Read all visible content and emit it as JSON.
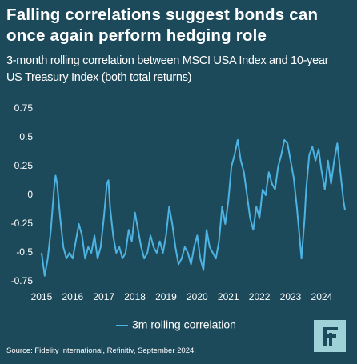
{
  "chart_data": {
    "type": "line",
    "title": "Falling correlations suggest bonds can once again perform hedging role",
    "subtitle": "3-month rolling correlation between MSCI USA Index and 10-year US Treasury Index (both total returns)",
    "source": "Source: Fidelity International, Refinitiv, September 2024.",
    "x": [
      2015.0,
      2015.05,
      2015.1,
      2015.2,
      2015.3,
      2015.4,
      2015.45,
      2015.5,
      2015.6,
      2015.7,
      2015.8,
      2015.9,
      2016.0,
      2016.1,
      2016.2,
      2016.3,
      2016.4,
      2016.5,
      2016.6,
      2016.7,
      2016.8,
      2016.9,
      2017.0,
      2017.1,
      2017.15,
      2017.2,
      2017.3,
      2017.4,
      2017.5,
      2017.6,
      2017.7,
      2017.8,
      2017.9,
      2018.0,
      2018.1,
      2018.2,
      2018.3,
      2018.4,
      2018.5,
      2018.6,
      2018.7,
      2018.8,
      2018.9,
      2019.0,
      2019.1,
      2019.2,
      2019.3,
      2019.4,
      2019.5,
      2019.6,
      2019.7,
      2019.8,
      2019.9,
      2020.0,
      2020.1,
      2020.2,
      2020.3,
      2020.4,
      2020.5,
      2020.6,
      2020.7,
      2020.8,
      2020.9,
      2021.0,
      2021.1,
      2021.2,
      2021.3,
      2021.4,
      2021.5,
      2021.6,
      2021.7,
      2021.8,
      2021.9,
      2022.0,
      2022.1,
      2022.2,
      2022.3,
      2022.4,
      2022.5,
      2022.6,
      2022.7,
      2022.8,
      2022.9,
      2023.0,
      2023.1,
      2023.2,
      2023.3,
      2023.35,
      2023.45,
      2023.5,
      2023.6,
      2023.7,
      2023.8,
      2023.9,
      2024.0,
      2024.1,
      2024.2,
      2024.3,
      2024.4,
      2024.5,
      2024.6,
      2024.7,
      2024.75
    ],
    "series": [
      {
        "name": "3m rolling correlation",
        "color": "#4db3e2",
        "values": [
          -0.5,
          -0.6,
          -0.7,
          -0.55,
          -0.3,
          0.05,
          0.17,
          0.1,
          -0.2,
          -0.45,
          -0.55,
          -0.5,
          -0.55,
          -0.4,
          -0.25,
          -0.35,
          -0.55,
          -0.45,
          -0.5,
          -0.35,
          -0.55,
          -0.45,
          -0.2,
          0.1,
          0.13,
          -0.1,
          -0.35,
          -0.5,
          -0.45,
          -0.55,
          -0.5,
          -0.3,
          -0.4,
          -0.15,
          -0.3,
          -0.45,
          -0.55,
          -0.5,
          -0.35,
          -0.45,
          -0.5,
          -0.4,
          -0.5,
          -0.35,
          -0.1,
          -0.25,
          -0.45,
          -0.6,
          -0.55,
          -0.45,
          -0.5,
          -0.6,
          -0.45,
          -0.35,
          -0.55,
          -0.65,
          -0.3,
          -0.45,
          -0.5,
          -0.55,
          -0.4,
          -0.1,
          -0.25,
          -0.05,
          0.25,
          0.35,
          0.48,
          0.3,
          0.2,
          0.0,
          -0.2,
          -0.3,
          -0.1,
          -0.2,
          0.05,
          0.0,
          0.2,
          0.1,
          0.05,
          0.25,
          0.35,
          0.48,
          0.45,
          0.3,
          0.15,
          -0.1,
          -0.4,
          -0.55,
          -0.2,
          0.05,
          0.35,
          0.42,
          0.3,
          0.4,
          0.2,
          0.05,
          0.3,
          0.1,
          0.3,
          0.45,
          0.2,
          -0.05,
          -0.13
        ]
      }
    ],
    "xlim": [
      2014.95,
      2024.8
    ],
    "xticks": [
      2015,
      2016,
      2017,
      2018,
      2019,
      2020,
      2021,
      2022,
      2023,
      2024
    ],
    "ylim": [
      -0.75,
      0.75
    ],
    "yticks": [
      0.75,
      0.5,
      0.25,
      0,
      -0.25,
      -0.5,
      -0.75
    ],
    "grid": false
  }
}
